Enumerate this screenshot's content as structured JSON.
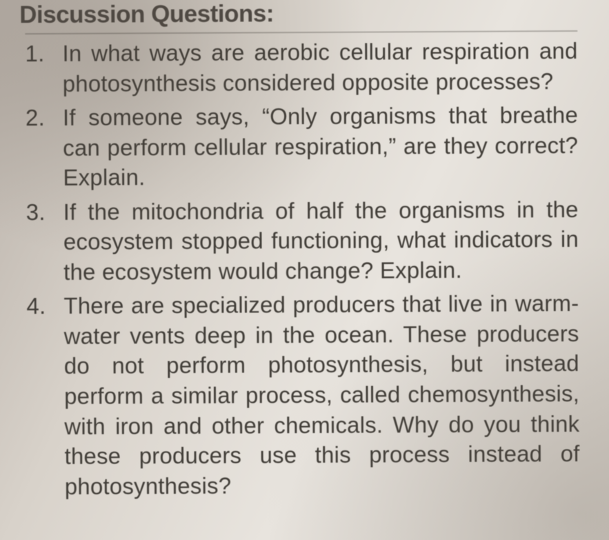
{
  "background_gradient": [
    "#b8b0a8",
    "#d8d2ca",
    "#e8e4de",
    "#d0cac2"
  ],
  "text_color": "#3c3832",
  "font_family": "Arial, Helvetica, sans-serif",
  "heading": "Discussion Questions:",
  "heading_fontsize": 35,
  "body_fontsize": 33,
  "line_height": 1.32,
  "questions": [
    "In what ways are aerobic cellular respiration and photosynthesis considered opposite processes?",
    "If someone says, “Only organisms that breathe can perform cellular respiration,” are they correct? Explain.",
    "If the mitochondria of half the organisms in the ecosystem stopped functioning, what indicators in the ecosystem would change? Explain.",
    "There are specialized producers that live in warm-water vents deep in the ocean. These producers do not perform photosynthesis, but instead perform a similar process, called chemosynthesis, with iron and other chemicals. Why do you think these producers use this process instead of photosynthesis?"
  ]
}
